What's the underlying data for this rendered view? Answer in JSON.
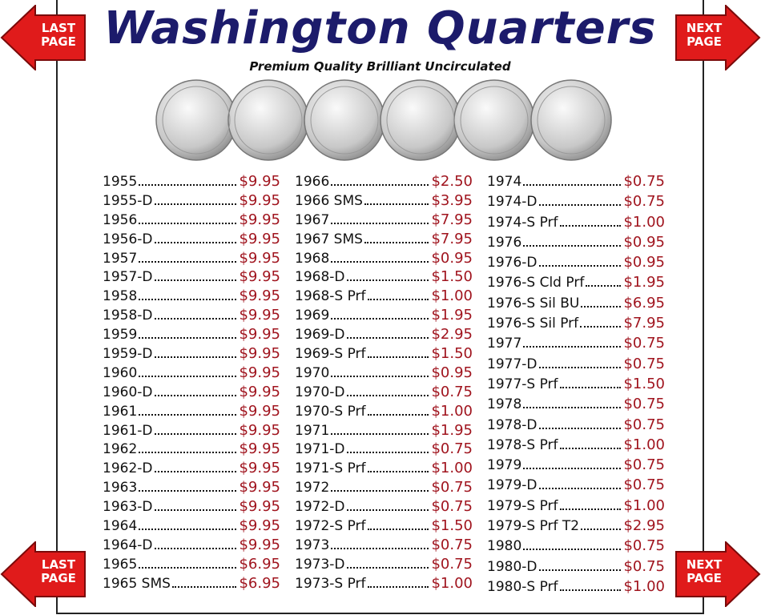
{
  "header": {
    "title": "Washington Quarters",
    "subtitle": "Premium Quality Brilliant Uncirculated"
  },
  "nav": [
    {
      "label": "LAST PAGE"
    },
    {
      "label": "NEXT PAGE"
    },
    {
      "label": "LAST PAGE"
    },
    {
      "label": "NEXT PAGE"
    }
  ],
  "columns": [
    [
      [
        "1955",
        "$9.95"
      ],
      [
        "1955-D",
        "$9.95"
      ],
      [
        "1956",
        "$9.95"
      ],
      [
        "1956-D",
        "$9.95"
      ],
      [
        "1957",
        "$9.95"
      ],
      [
        "1957-D",
        "$9.95"
      ],
      [
        "1958",
        "$9.95"
      ],
      [
        "1958-D",
        "$9.95"
      ],
      [
        "1959",
        "$9.95"
      ],
      [
        "1959-D",
        "$9.95"
      ],
      [
        "1960",
        "$9.95"
      ],
      [
        "1960-D",
        "$9.95"
      ],
      [
        "1961",
        "$9.95"
      ],
      [
        "1961-D",
        "$9.95"
      ],
      [
        "1962",
        "$9.95"
      ],
      [
        "1962-D",
        "$9.95"
      ],
      [
        "1963",
        "$9.95"
      ],
      [
        "1963-D",
        "$9.95"
      ],
      [
        "1964",
        "$9.95"
      ],
      [
        "1964-D",
        "$9.95"
      ],
      [
        "1965",
        "$6.95"
      ],
      [
        "1965 SMS",
        "$6.95"
      ]
    ],
    [
      [
        "1966",
        "$2.50"
      ],
      [
        "1966 SMS",
        "$3.95"
      ],
      [
        "1967",
        "$7.95"
      ],
      [
        "1967 SMS",
        "$7.95"
      ],
      [
        "1968",
        "$0.95"
      ],
      [
        "1968-D",
        "$1.50"
      ],
      [
        "1968-S Prf",
        "$1.00"
      ],
      [
        "1969",
        "$1.95"
      ],
      [
        "1969-D",
        "$2.95"
      ],
      [
        "1969-S Prf",
        "$1.50"
      ],
      [
        "1970",
        "$0.95"
      ],
      [
        "1970-D",
        "$0.75"
      ],
      [
        "1970-S Prf",
        "$1.00"
      ],
      [
        "1971",
        "$1.95"
      ],
      [
        "1971-D",
        "$0.75"
      ],
      [
        "1971-S Prf",
        "$1.00"
      ],
      [
        "1972",
        "$0.75"
      ],
      [
        "1972-D",
        "$0.75"
      ],
      [
        "1972-S Prf",
        "$1.50"
      ],
      [
        "1973",
        "$0.75"
      ],
      [
        "1973-D",
        "$0.75"
      ],
      [
        "1973-S Prf",
        "$1.00"
      ]
    ],
    [
      [
        "1974",
        "$0.75"
      ],
      [
        "1974-D",
        "$0.75"
      ],
      [
        "1974-S Prf",
        "$1.00"
      ],
      [
        "1976",
        "$0.95"
      ],
      [
        "1976-D",
        "$0.95"
      ],
      [
        "1976-S Cld Prf",
        "$1.95"
      ],
      [
        "1976-S Sil BU",
        "$6.95"
      ],
      [
        "1976-S Sil Prf",
        "$7.95"
      ],
      [
        "1977",
        "$0.75"
      ],
      [
        "1977-D",
        "$0.75"
      ],
      [
        "1977-S Prf",
        "$1.50"
      ],
      [
        "1978",
        "$0.75"
      ],
      [
        "1978-D",
        "$0.75"
      ],
      [
        "1978-S Prf",
        "$1.00"
      ],
      [
        "1979",
        "$0.75"
      ],
      [
        "1979-D",
        "$0.75"
      ],
      [
        "1979-S Prf",
        "$1.00"
      ],
      [
        "1979-S Prf T2",
        "$2.95"
      ],
      [
        "1980",
        "$0.75"
      ],
      [
        "1980-D",
        "$0.75"
      ],
      [
        "1980-S Prf",
        "$1.00"
      ]
    ]
  ]
}
